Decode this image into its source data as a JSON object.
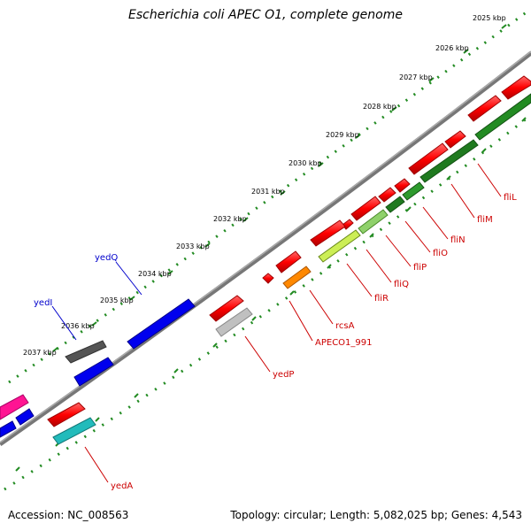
{
  "title": "Escherichia coli APEC O1, complete genome",
  "footer": {
    "accession": "Accession: NC_008563",
    "summary": "Topology: circular; Length: 5,082,025 bp; Genes: 4,543"
  },
  "colors": {
    "ruler": "#228b22",
    "backbone": "#808080",
    "forward_gene": "#ff0000",
    "reverse_gene": "#228b22",
    "rna": "#0000ff",
    "pseudogene": "#b0b0b0",
    "label": "#cc0000",
    "blue_label": "#0000cc"
  },
  "ruler_labels": [
    "2025 kbp",
    "2026 kbp",
    "2027 kbp",
    "2028 kbp",
    "2029 kbp",
    "2030 kbp",
    "2031 kbp",
    "2032 kbp",
    "2033 kbp",
    "2034 kbp",
    "2035 kbp",
    "2036 kbp",
    "2037 kbp"
  ],
  "gene_labels": [
    {
      "text": "fliL",
      "color": "red"
    },
    {
      "text": "fliM",
      "color": "red"
    },
    {
      "text": "fliN",
      "color": "red"
    },
    {
      "text": "fliO",
      "color": "red"
    },
    {
      "text": "fliP",
      "color": "red"
    },
    {
      "text": "fliQ",
      "color": "red"
    },
    {
      "text": "fliR",
      "color": "red"
    },
    {
      "text": "rcsA",
      "color": "red"
    },
    {
      "text": "APECO1_991",
      "color": "red"
    },
    {
      "text": "yedP",
      "color": "red"
    },
    {
      "text": "yedA",
      "color": "red"
    },
    {
      "text": "yedQ",
      "color": "blue"
    },
    {
      "text": "yedI",
      "color": "blue"
    }
  ]
}
